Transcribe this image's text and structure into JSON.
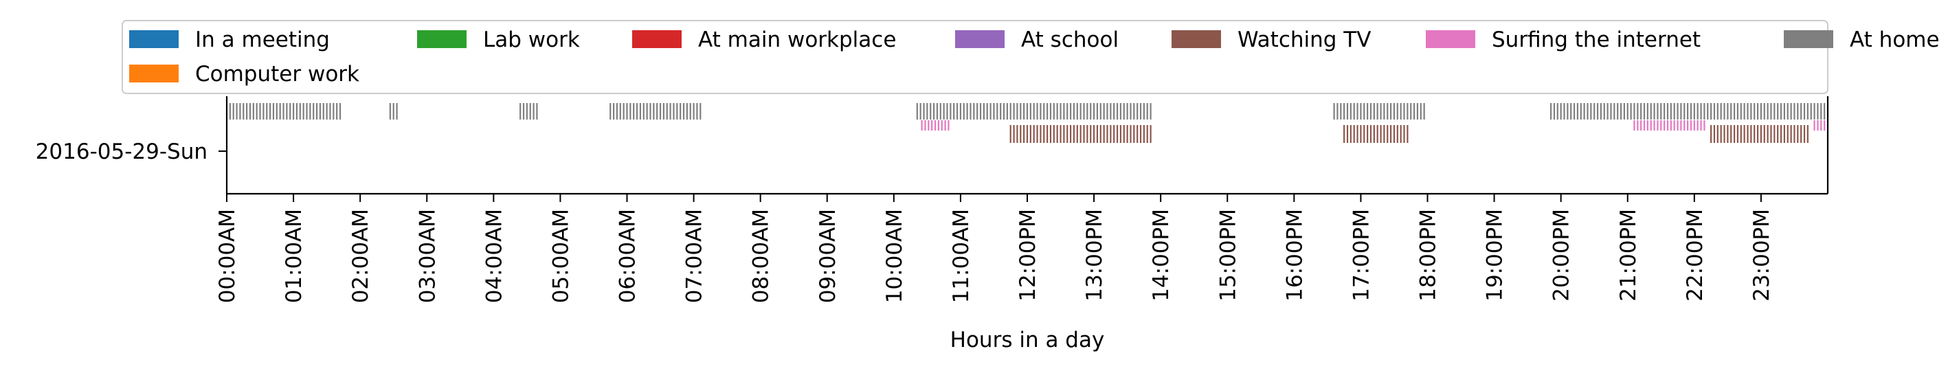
{
  "chart_data": {
    "type": "event-timeline",
    "xlabel": "Hours in a day",
    "ylabel": "",
    "xlim_hours": [
      0,
      24
    ],
    "y_categories": [
      "2016-05-29-Sun"
    ],
    "x_tick_labels": [
      "00:00AM",
      "01:00AM",
      "02:00AM",
      "03:00AM",
      "04:00AM",
      "05:00AM",
      "06:00AM",
      "07:00AM",
      "08:00AM",
      "09:00AM",
      "10:00AM",
      "11:00AM",
      "12:00PM",
      "13:00PM",
      "14:00PM",
      "15:00PM",
      "16:00PM",
      "17:00PM",
      "18:00PM",
      "19:00PM",
      "20:00PM",
      "21:00PM",
      "22:00PM",
      "23:00PM"
    ],
    "legend": {
      "placement": "top",
      "columns": 7,
      "entries": [
        {
          "name": "In a meeting",
          "color": "#1f77b4"
        },
        {
          "name": "Lab work",
          "color": "#2ca02c"
        },
        {
          "name": "At main workplace",
          "color": "#d62728"
        },
        {
          "name": "At school",
          "color": "#9467bd"
        },
        {
          "name": "Watching TV",
          "color": "#8c564b"
        },
        {
          "name": "Surfing the internet",
          "color": "#e377c2"
        },
        {
          "name": "At home",
          "color": "#7f7f7f"
        },
        {
          "name": "Computer work",
          "color": "#ff7f0e"
        }
      ]
    },
    "grid": false,
    "series": [
      {
        "name": "At home",
        "color": "#7f7f7f",
        "row": 0,
        "tick_spacing_hours": 0.05,
        "intervals_hours": [
          [
            0.05,
            1.72
          ],
          [
            2.45,
            2.57
          ],
          [
            4.4,
            4.67
          ],
          [
            5.75,
            7.1
          ],
          [
            10.35,
            13.85
          ],
          [
            16.6,
            17.95
          ],
          [
            19.85,
            23.95
          ]
        ]
      },
      {
        "name": "Surfing the internet",
        "color": "#e377c2",
        "row": 1,
        "tick_spacing_hours": 0.05,
        "intervals_hours": [
          [
            10.42,
            10.85
          ],
          [
            21.1,
            22.15
          ],
          [
            23.8,
            23.98
          ]
        ]
      },
      {
        "name": "Watching TV",
        "color": "#8c564b",
        "row": 2,
        "tick_spacing_hours": 0.05,
        "intervals_hours": [
          [
            11.75,
            13.85
          ],
          [
            16.75,
            17.7
          ],
          [
            22.25,
            23.7
          ]
        ]
      }
    ]
  }
}
